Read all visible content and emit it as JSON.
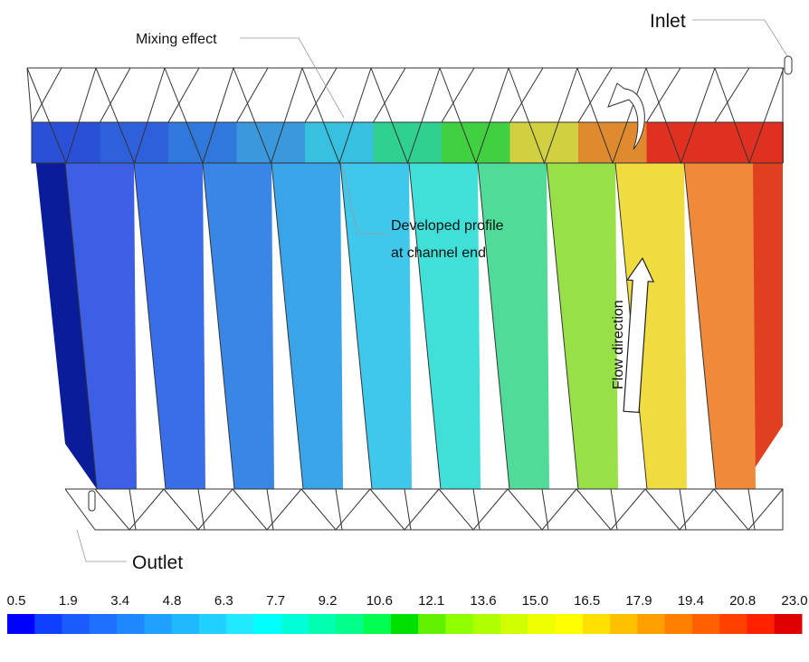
{
  "annotations": {
    "mixing": "Mixing effect",
    "inlet": "Inlet",
    "developed_1": "Developed profile",
    "developed_2": "at channel end",
    "flow": "Flow direction",
    "outlet": "Outlet"
  },
  "colorbar": {
    "tick_labels": [
      "0.5",
      "1.9",
      "3.4",
      "4.8",
      "6.3",
      "7.7",
      "9.2",
      "10.6",
      "12.1",
      "13.6",
      "15.0",
      "16.5",
      "17.9",
      "19.4",
      "20.8",
      "23.0"
    ],
    "colors": [
      "#0000ff",
      "#1040ff",
      "#1a5cff",
      "#2070ff",
      "#2088ff",
      "#20a0ff",
      "#20b8ff",
      "#20d0ff",
      "#20e8ff",
      "#00ffff",
      "#00ffd8",
      "#00ffb0",
      "#00ff88",
      "#00ff50",
      "#00e000",
      "#60f000",
      "#90ff00",
      "#b0ff00",
      "#d0ff00",
      "#f0ff00",
      "#ffff00",
      "#ffe000",
      "#ffc000",
      "#ffa000",
      "#ff8000",
      "#ff6000",
      "#ff4000",
      "#ff2000",
      "#e00000"
    ]
  }
}
